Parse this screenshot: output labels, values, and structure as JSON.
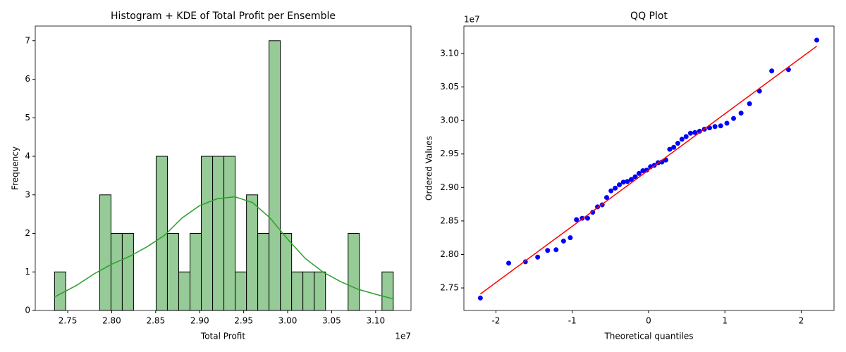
{
  "chart_data": [
    {
      "type": "histogram",
      "title": "Histogram + KDE of Total Profit per Ensemble",
      "xlabel": "Total Profit",
      "ylabel": "Frequency",
      "x_offset_text": "1e7",
      "bins": [
        2.735,
        2.7478,
        2.7607,
        2.7735,
        2.7863,
        2.7992,
        2.812,
        2.8248,
        2.8377,
        2.8505,
        2.8633,
        2.8762,
        2.889,
        2.9018,
        2.9147,
        2.9275,
        2.9403,
        2.9532,
        2.966,
        2.9788,
        2.9917,
        3.0045,
        3.0173,
        3.0302,
        3.043,
        3.0558,
        3.0687,
        3.0815,
        3.0943,
        3.1072,
        3.12
      ],
      "counts": [
        1,
        0,
        0,
        0,
        3,
        2,
        2,
        0,
        0,
        4,
        2,
        1,
        2,
        4,
        4,
        4,
        1,
        3,
        2,
        7,
        2,
        1,
        1,
        1,
        0,
        0,
        2,
        0,
        0,
        1
      ],
      "color": "#96ca96",
      "edgecolor": "#000000",
      "kde": {
        "color": "#2ca02c",
        "x": [
          2.735,
          2.76,
          2.78,
          2.8,
          2.82,
          2.84,
          2.86,
          2.88,
          2.9,
          2.92,
          2.94,
          2.96,
          2.98,
          3.0,
          3.02,
          3.04,
          3.06,
          3.08,
          3.1,
          3.12
        ],
        "values": [
          0.35,
          0.65,
          0.95,
          1.2,
          1.4,
          1.65,
          1.95,
          2.4,
          2.72,
          2.9,
          2.95,
          2.8,
          2.4,
          1.85,
          1.35,
          1.0,
          0.75,
          0.55,
          0.42,
          0.3
        ]
      },
      "xlim": [
        2.7131,
        3.1402
      ],
      "ylim": [
        0,
        7.38
      ],
      "xticks": [
        2.75,
        {
          "value": 2.8,
          "label": "2.80"
        },
        2.85,
        {
          "value": 2.9,
          "label": "2.90"
        },
        2.95,
        {
          "value": 3.0,
          "label": "3.00"
        },
        3.05,
        {
          "value": 3.1,
          "label": "3.10"
        }
      ],
      "yticks": [
        0,
        1,
        2,
        3,
        4,
        5,
        6,
        7
      ]
    },
    {
      "type": "scatter",
      "title": "QQ Plot",
      "xlabel": "Theoretical quantiles",
      "ylabel": "Ordered Values",
      "y_offset_text": "1e7",
      "color": "#0000ff",
      "x": [
        -2.204,
        -1.833,
        -1.614,
        -1.453,
        -1.323,
        -1.212,
        -1.114,
        -1.026,
        -0.945,
        -0.87,
        -0.799,
        -0.732,
        -0.669,
        -0.608,
        -0.549,
        -0.492,
        -0.437,
        -0.383,
        -0.33,
        -0.277,
        -0.226,
        -0.175,
        -0.125,
        -0.075,
        -0.025,
        0.025,
        0.075,
        0.125,
        0.175,
        0.226,
        0.277,
        0.33,
        0.383,
        0.437,
        0.492,
        0.549,
        0.608,
        0.669,
        0.732,
        0.799,
        0.87,
        0.945,
        1.026,
        1.114,
        1.212,
        1.323,
        1.453,
        1.614,
        1.833,
        2.204
      ],
      "values": [
        2.735,
        2.787,
        2.789,
        2.796,
        2.806,
        2.807,
        2.82,
        2.825,
        2.852,
        2.854,
        2.854,
        2.863,
        2.871,
        2.874,
        2.885,
        2.895,
        2.899,
        2.904,
        2.908,
        2.909,
        2.912,
        2.916,
        2.921,
        2.925,
        2.926,
        2.931,
        2.933,
        2.937,
        2.938,
        2.941,
        2.957,
        2.96,
        2.966,
        2.972,
        2.976,
        2.981,
        2.982,
        2.984,
        2.987,
        2.989,
        2.991,
        2.992,
        2.996,
        3.003,
        3.011,
        3.025,
        3.044,
        3.074,
        3.076,
        3.12
      ],
      "fit": {
        "color": "#ff0000",
        "x": [
          -2.204,
          2.204
        ],
        "values": [
          2.741,
          3.111
        ]
      },
      "xlim": [
        -2.42,
        2.43
      ],
      "ylim": [
        2.7164,
        3.141
      ],
      "xticks": [
        -2,
        -1,
        0,
        1,
        2
      ],
      "yticks": [
        2.75,
        {
          "value": 2.8,
          "label": "2.80"
        },
        2.85,
        {
          "value": 2.9,
          "label": "2.90"
        },
        2.95,
        {
          "value": 3.0,
          "label": "3.00"
        },
        3.05,
        {
          "value": 3.1,
          "label": "3.10"
        }
      ]
    }
  ]
}
